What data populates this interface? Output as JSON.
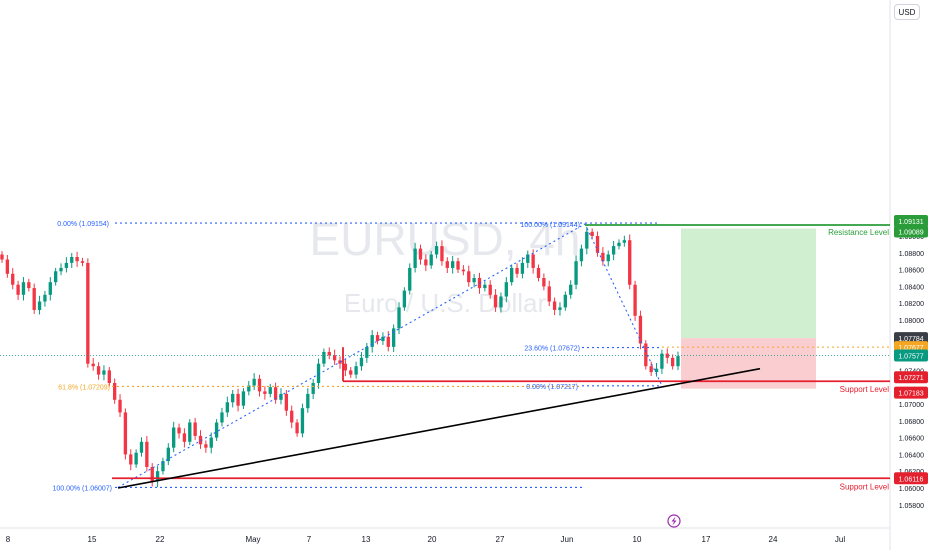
{
  "watermark": {
    "symbol": "EURUSD, 4h",
    "name": "Euro / U.S. Dollar"
  },
  "currency": "USD",
  "colors": {
    "up": "#089981",
    "down": "#f23645",
    "resistance": "#2a9d3a",
    "support": "#e5202e",
    "fib": "#2962ff",
    "fib_618": "#f5a623",
    "reward_zone": "#c8ebc8",
    "risk_zone": "#f9c8cb",
    "trendline": "#000000",
    "current_price": "#089981"
  },
  "chart_data": {
    "type": "candlestick",
    "title": "EURUSD, 4h",
    "ylim": [
      1.0575,
      1.0935
    ],
    "x_tick_labels": [
      "8",
      "15",
      "22",
      "May",
      "7",
      "13",
      "20",
      "27",
      "Jun",
      "10",
      "17",
      "24",
      "Jul"
    ],
    "y_tick_labels": [
      "1.09000",
      "1.08800",
      "1.08600",
      "1.08400",
      "1.08200",
      "1.08000",
      "1.07400",
      "1.07000",
      "1.06800",
      "1.06600",
      "1.06400",
      "1.06200",
      "1.06000",
      "1.05800"
    ],
    "price_badges": [
      {
        "value": "1.09131",
        "kind": "resistance"
      },
      {
        "value": "1.09089",
        "kind": "resistance"
      },
      {
        "value": "1.07784",
        "kind": "entry"
      },
      {
        "value": "1.07677",
        "kind": "orange"
      },
      {
        "value": "1.07577",
        "kind": "current"
      },
      {
        "value": "1.07271",
        "kind": "support"
      },
      {
        "value": "1.07183",
        "kind": "support"
      },
      {
        "value": "1.06116",
        "kind": "support"
      }
    ],
    "levels": [
      {
        "label": "Resistance Level",
        "price": 1.09131,
        "kind": "resistance"
      },
      {
        "label": "Support Level",
        "price": 1.07271,
        "kind": "support"
      },
      {
        "label": "Support Level",
        "price": 1.06116,
        "kind": "support"
      }
    ],
    "fib_labels": [
      {
        "text": "0.00% (1.09154)",
        "price": 1.09154
      },
      {
        "text": "100.00% (1.09144)",
        "price": 1.09144
      },
      {
        "text": "23.60% (1.07672)",
        "price": 1.07672
      },
      {
        "text": "0.00% (1.07217)",
        "price": 1.07217
      },
      {
        "text": "61.8% (1.07209)",
        "price": 1.07209
      },
      {
        "text": "100.00% (1.06007)",
        "price": 1.06007
      }
    ],
    "position": {
      "entry": 1.07784,
      "target": 1.09089,
      "stop": 1.07183
    },
    "trendline": [
      {
        "x": "Apr 17",
        "y": 1.06
      },
      {
        "x": "Jun 21",
        "y": 1.0742
      }
    ],
    "current_price": 1.07577,
    "closes": [
      1.0872,
      1.0855,
      1.0842,
      1.083,
      1.0845,
      1.0838,
      1.0812,
      1.0822,
      1.083,
      1.0845,
      1.0858,
      1.0862,
      1.0868,
      1.0875,
      1.087,
      1.0868,
      1.0748,
      1.0745,
      1.0735,
      1.074,
      1.0725,
      1.0705,
      1.069,
      1.064,
      1.0628,
      1.0642,
      1.0655,
      1.0625,
      1.0608,
      1.062,
      1.0632,
      1.0648,
      1.0672,
      1.0665,
      1.0655,
      1.0678,
      1.0662,
      1.0652,
      1.0648,
      1.066,
      1.0678,
      1.069,
      1.0702,
      1.0712,
      1.0698,
      1.0715,
      1.0722,
      1.073,
      1.0715,
      1.0712,
      1.072,
      1.0705,
      1.0712,
      1.0692,
      1.0678,
      1.0665,
      1.0695,
      1.0712,
      1.0725,
      1.0748,
      1.0762,
      1.0758,
      1.0752,
      1.0748,
      1.074,
      1.0735,
      1.0745,
      1.0755,
      1.0768,
      1.0782,
      1.0775,
      1.078,
      1.0768,
      1.079,
      1.0815,
      1.0835,
      1.0862,
      1.0885,
      1.0872,
      1.0865,
      1.0878,
      1.0888,
      1.087,
      1.0862,
      1.087,
      1.086,
      1.0858,
      1.0845,
      1.085,
      1.0838,
      1.0842,
      1.083,
      1.0815,
      1.0828,
      1.0845,
      1.0862,
      1.0855,
      1.0868,
      1.0878,
      1.0862,
      1.085,
      1.084,
      1.0822,
      1.0812,
      1.0815,
      1.083,
      1.0842,
      1.087,
      1.0885,
      1.0905,
      1.09,
      1.088,
      1.087,
      1.0878,
      1.0888,
      1.0892,
      1.0895,
      1.0842,
      1.0805,
      1.0772,
      1.0745,
      1.0738,
      1.0742,
      1.076,
      1.0755,
      1.0745,
      1.0757
    ]
  }
}
